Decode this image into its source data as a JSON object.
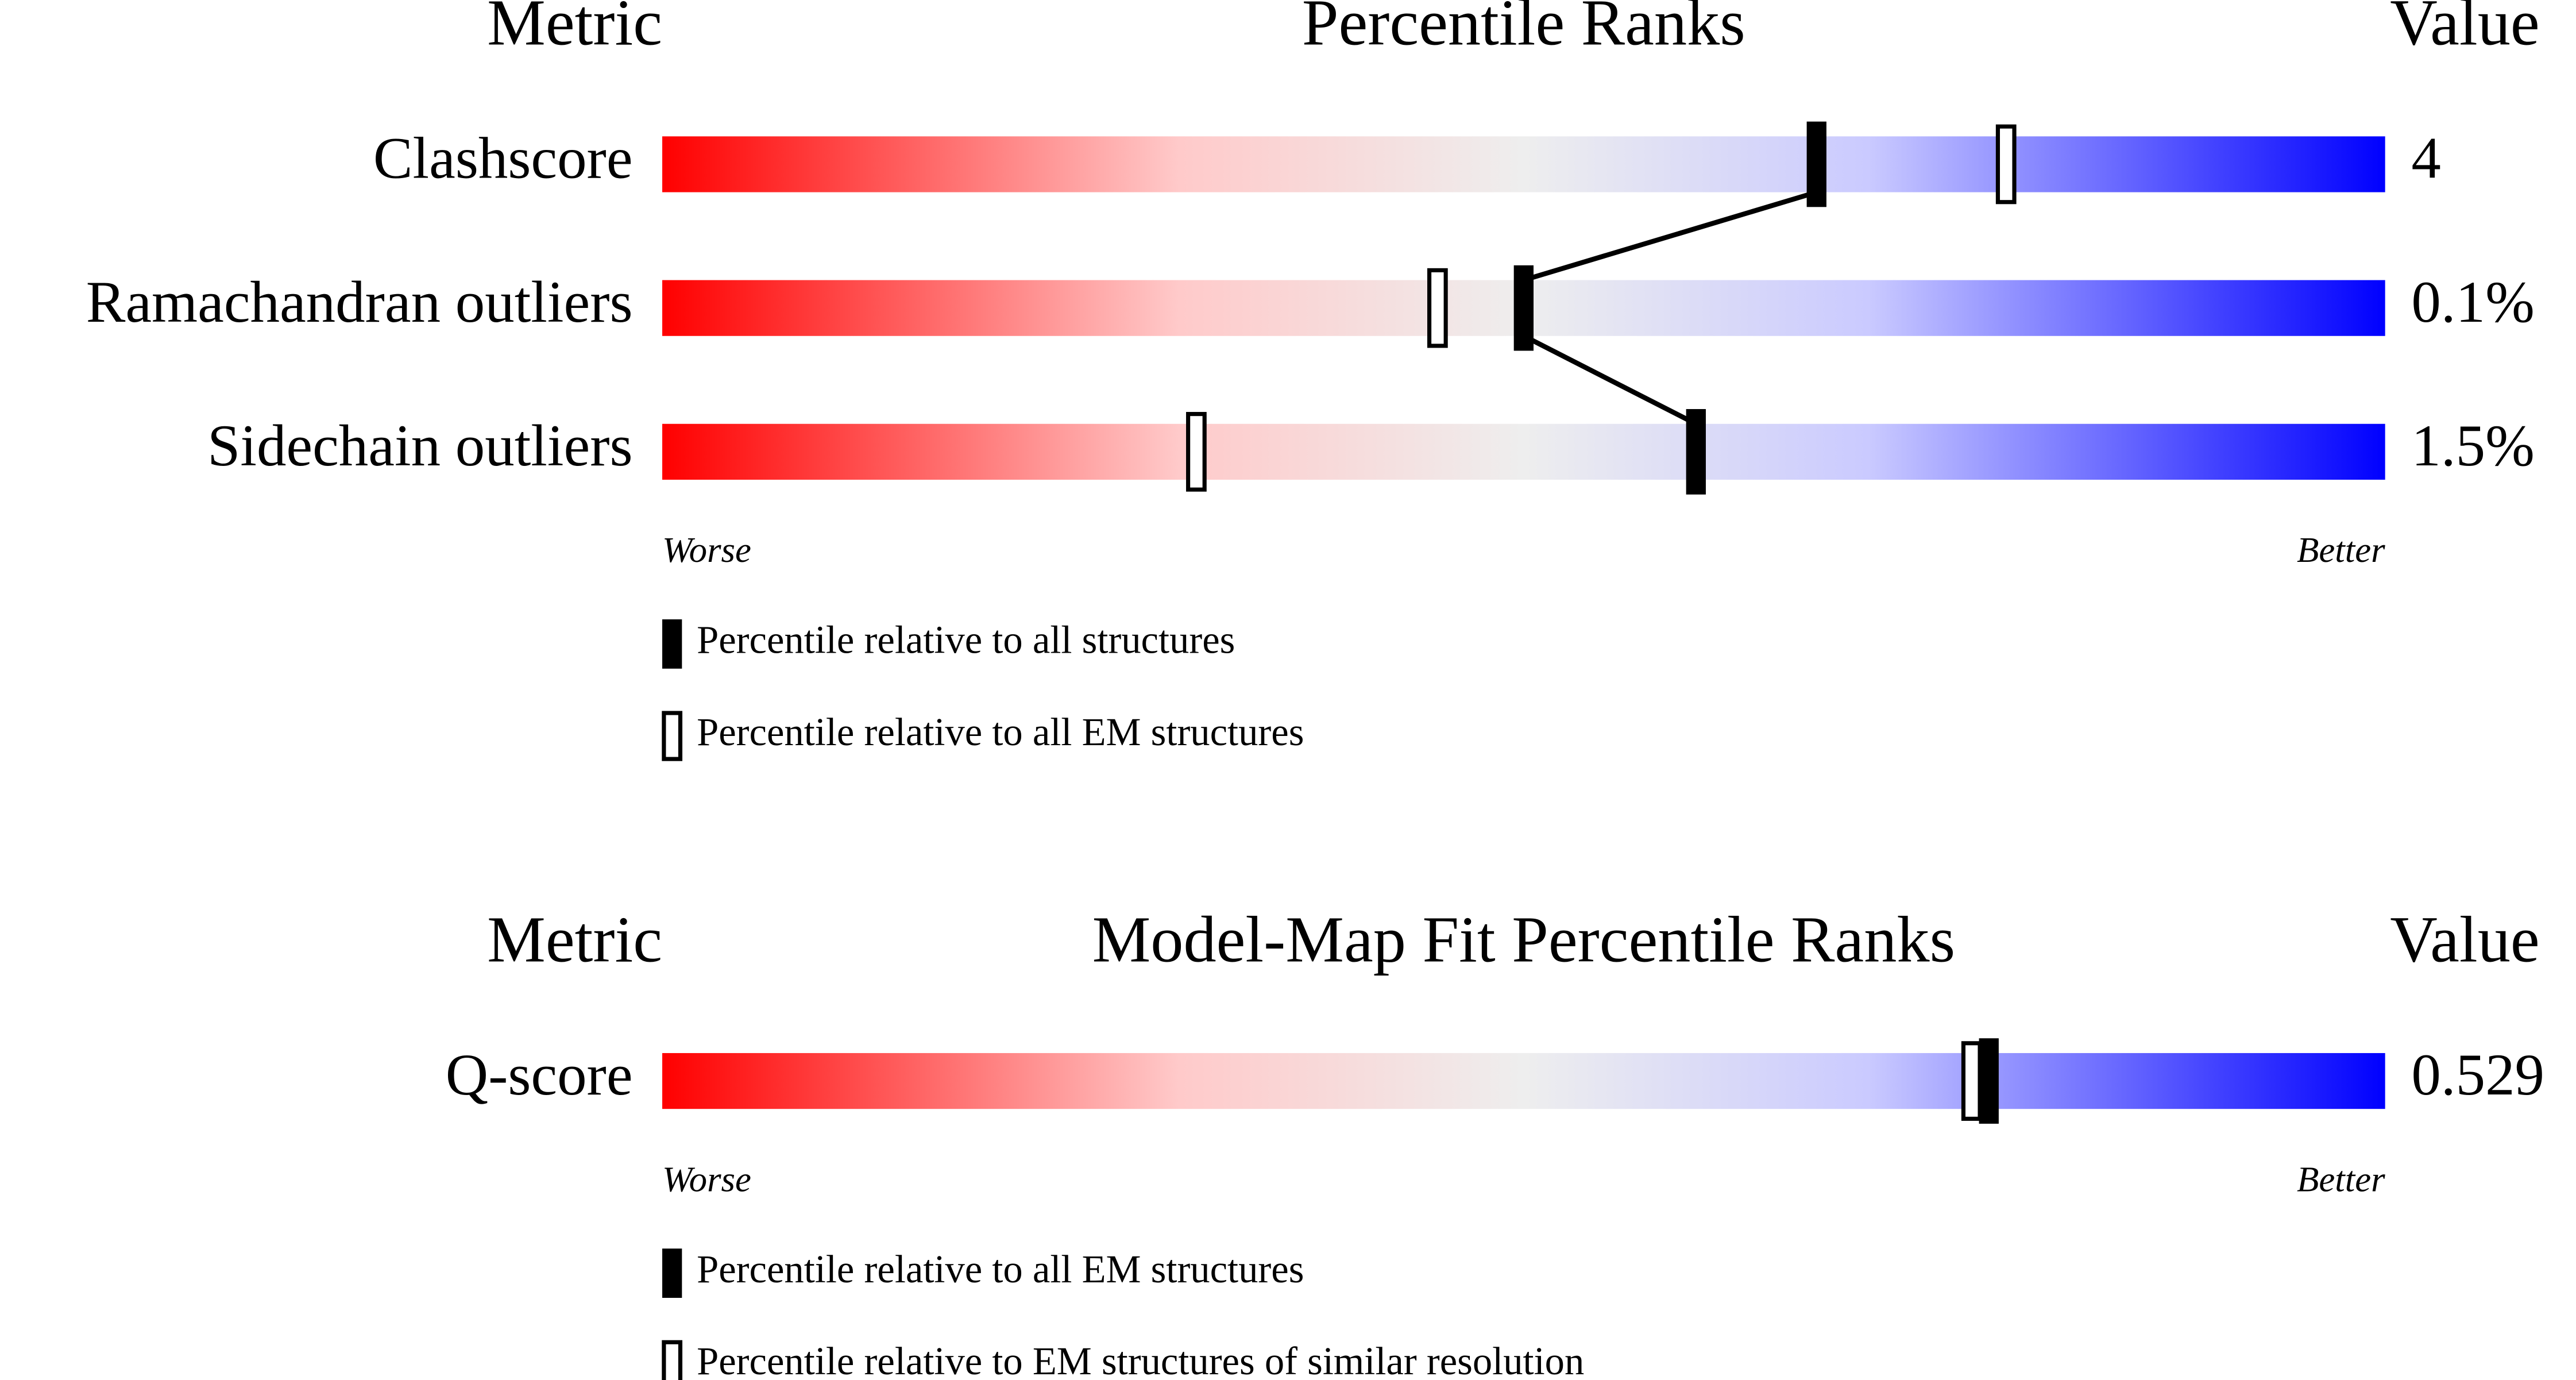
{
  "chart_data": [
    {
      "type": "percentile_slider",
      "title": "Percentile Ranks",
      "metric_header": "Metric",
      "value_header": "Value",
      "categories": [
        "Clashscore",
        "Ramachandran outliers",
        "Sidechain outliers"
      ],
      "metric_values": [
        "4",
        "0.1%",
        "1.5%"
      ],
      "worse_label": "Worse",
      "better_label": "Better",
      "xlim": [
        0,
        100
      ],
      "connect": "filled",
      "series": [
        {
          "name": "Percentile relative to all structures",
          "style": "filled",
          "color": "#000000",
          "values": [
            67,
            50,
            60
          ]
        },
        {
          "name": "Percentile relative to all EM structures",
          "style": "open",
          "color": "#000000",
          "values": [
            78,
            45,
            31
          ]
        }
      ]
    },
    {
      "type": "percentile_slider",
      "title": "Model-Map Fit Percentile Ranks",
      "metric_header": "Metric",
      "value_header": "Value",
      "categories": [
        "Q-score"
      ],
      "metric_values": [
        "0.529"
      ],
      "worse_label": "Worse",
      "better_label": "Better",
      "xlim": [
        0,
        100
      ],
      "series": [
        {
          "name": "Percentile relative to all EM structures",
          "style": "filled",
          "color": "#000000",
          "values": [
            77
          ]
        },
        {
          "name": "Percentile relative to EM structures of similar resolution",
          "style": "open",
          "color": "#000000",
          "values": [
            76
          ]
        }
      ]
    }
  ]
}
